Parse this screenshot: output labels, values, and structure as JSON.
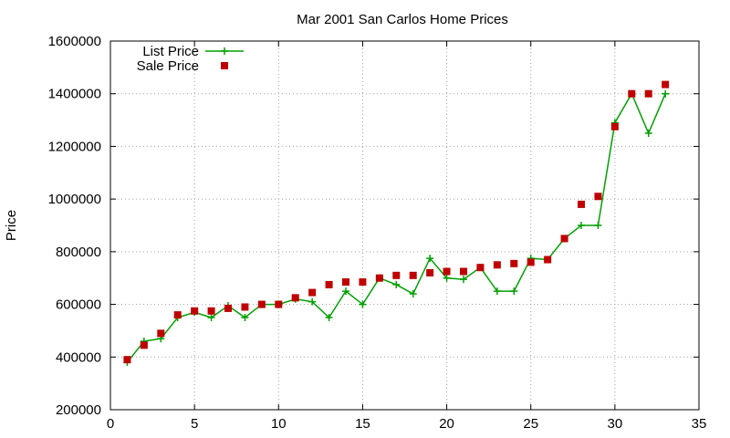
{
  "chart_data": {
    "type": "line",
    "title": "Mar 2001 San Carlos Home Prices",
    "xlabel": "",
    "ylabel": "Price",
    "xlim": [
      0,
      35
    ],
    "ylim": [
      200000,
      1600000
    ],
    "x_ticks": [
      0,
      5,
      10,
      15,
      20,
      25,
      30,
      35
    ],
    "y_ticks": [
      200000,
      400000,
      600000,
      800000,
      1000000,
      1200000,
      1400000,
      1600000
    ],
    "grid": true,
    "legend_position": "top-left",
    "x": [
      1,
      2,
      3,
      4,
      5,
      6,
      7,
      8,
      9,
      10,
      11,
      12,
      13,
      14,
      15,
      16,
      17,
      18,
      19,
      20,
      21,
      22,
      23,
      24,
      25,
      26,
      27,
      28,
      29,
      30,
      31,
      32,
      33
    ],
    "series": [
      {
        "name": "List Price",
        "style": "linespoints",
        "color": "#00a000",
        "values": [
          380000,
          460000,
          470000,
          550000,
          570000,
          550000,
          595000,
          550000,
          600000,
          600000,
          620000,
          610000,
          550000,
          650000,
          600000,
          700000,
          675000,
          640000,
          775000,
          700000,
          695000,
          740000,
          650000,
          650000,
          775000,
          770000,
          850000,
          900000,
          900000,
          1290000,
          1400000,
          1250000,
          1400000
        ]
      },
      {
        "name": "Sale Price",
        "style": "points",
        "color": "#c00000",
        "values": [
          390000,
          445000,
          490000,
          560000,
          575000,
          575000,
          585000,
          590000,
          600000,
          600000,
          625000,
          645000,
          675000,
          685000,
          685000,
          700000,
          710000,
          710000,
          720000,
          725000,
          725000,
          740000,
          750000,
          755000,
          760000,
          770000,
          850000,
          980000,
          1010000,
          1275000,
          1400000,
          1400000,
          1435000
        ]
      }
    ]
  }
}
